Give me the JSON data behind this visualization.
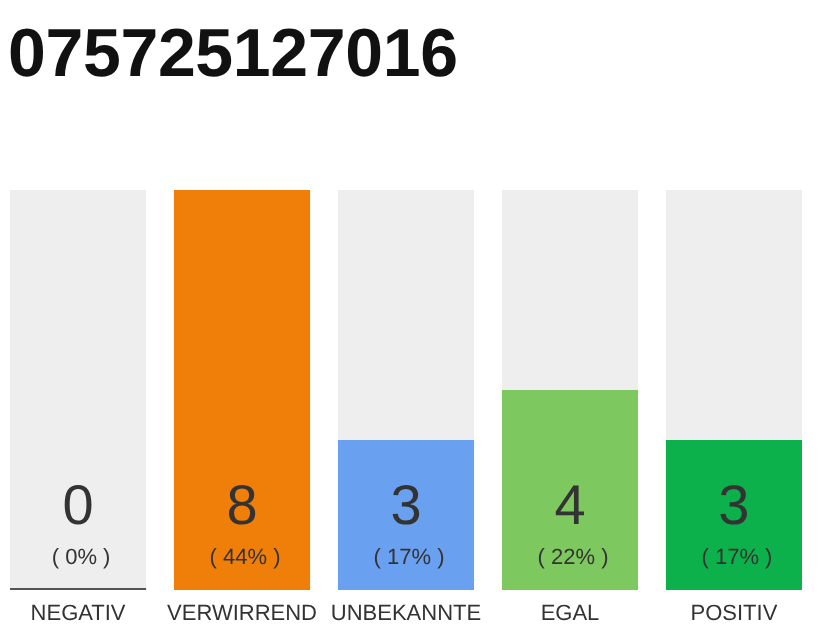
{
  "chart_data": {
    "type": "bar",
    "title": "075725127016",
    "categories": [
      "NEGATIV",
      "VERWIRREND",
      "UNBEKANNTE",
      "EGAL",
      "POSITIV"
    ],
    "values": [
      0,
      8,
      3,
      4,
      3
    ],
    "colors": [
      "#555555",
      "#f07f0a",
      "#6aa0f0",
      "#7ec95f",
      "#0db14b"
    ],
    "tick_labels": "x",
    "value_labels": [
      "0 ( 0% )",
      "8 ( 44% )",
      "3 ( 17% )",
      "4 ( 22% )",
      "3 ( 17% )"
    ]
  }
}
